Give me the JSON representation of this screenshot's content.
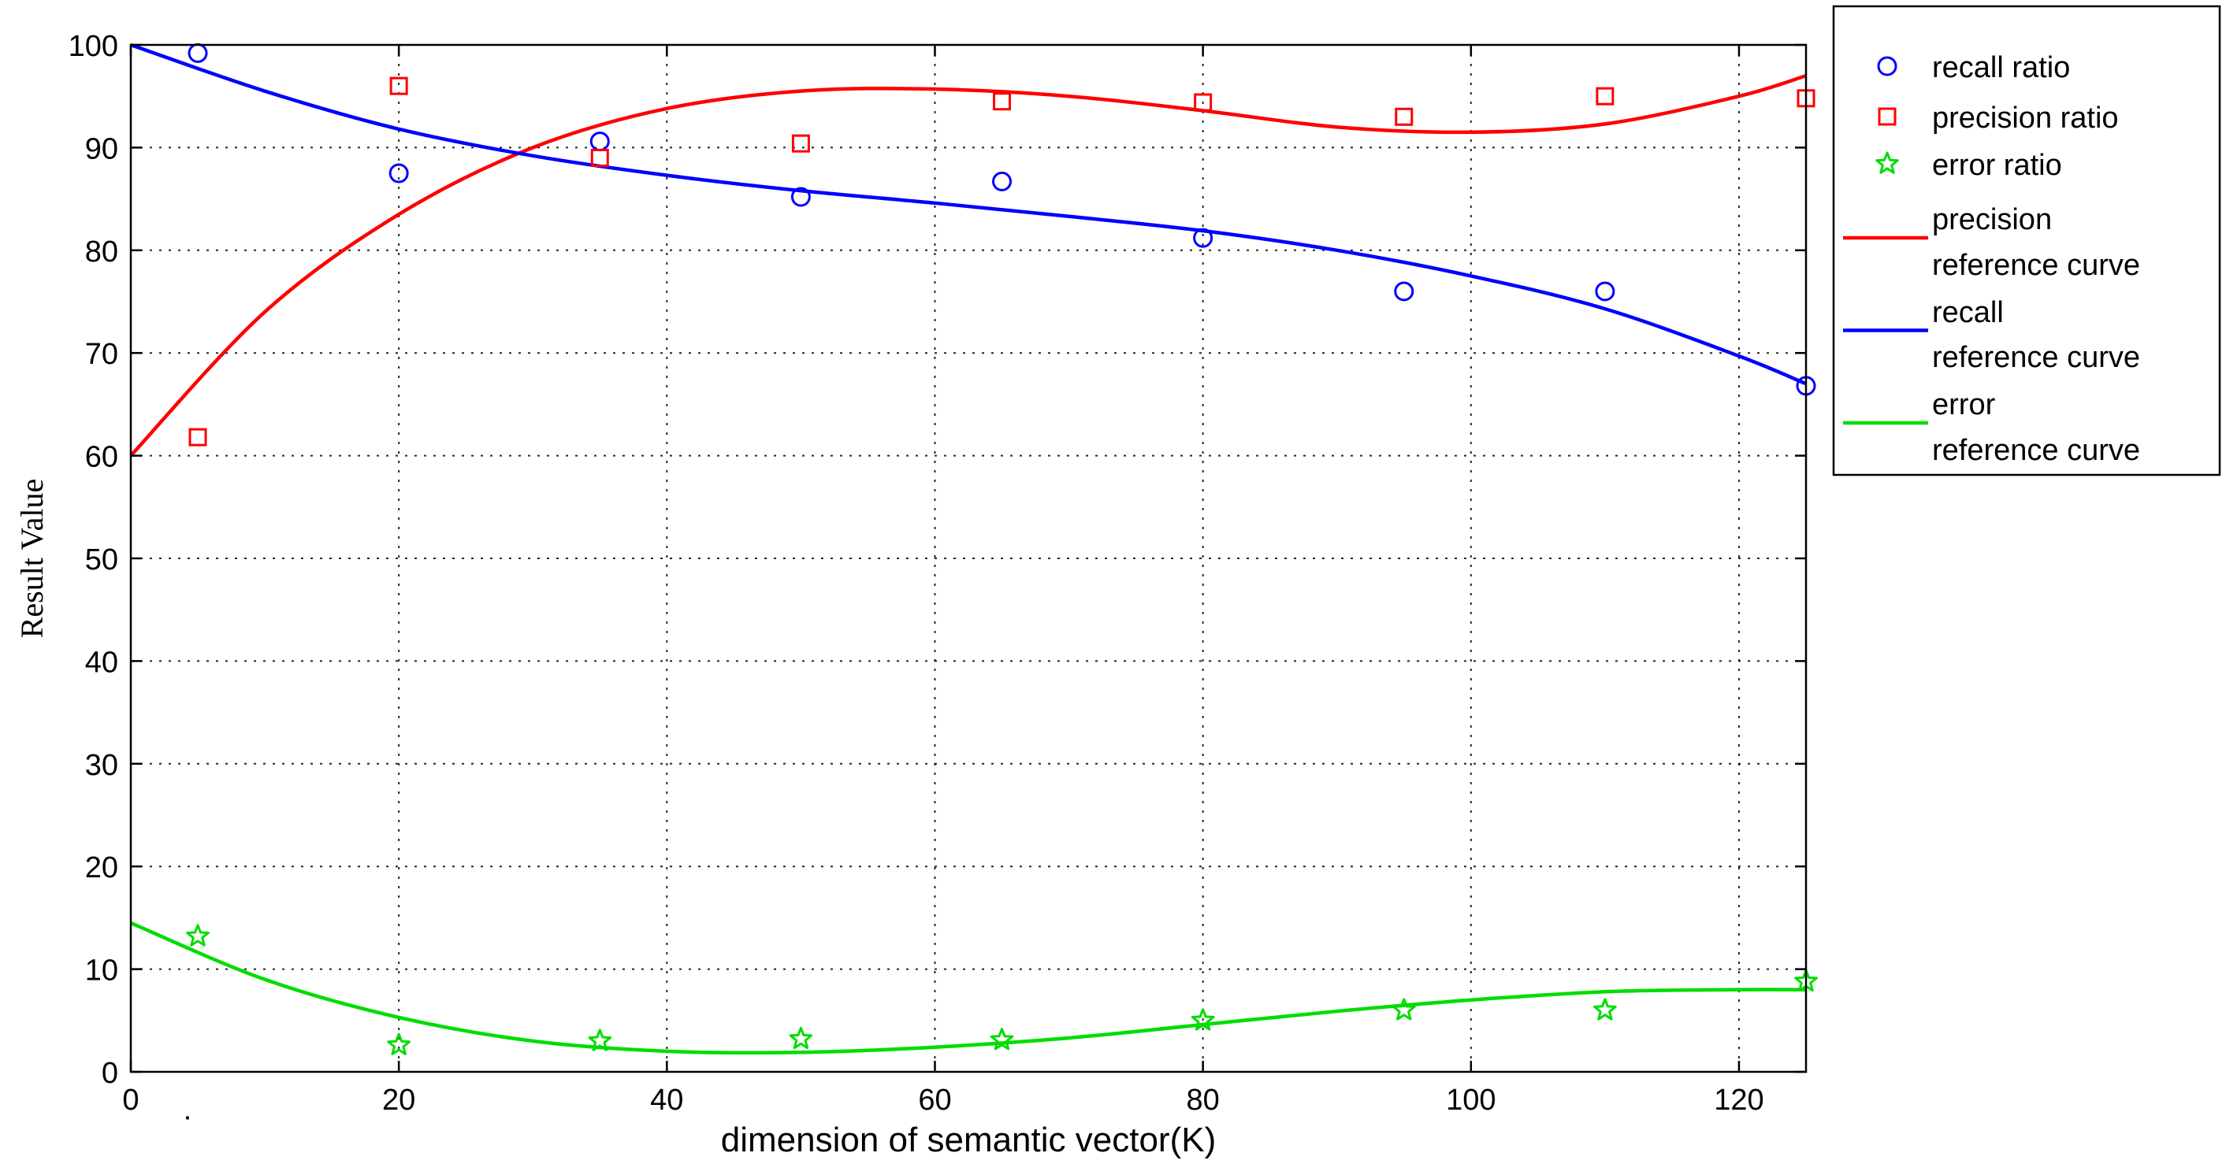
{
  "chart_data": {
    "type": "scatter",
    "title": "",
    "xlabel": "dimension of semantic vector(K)",
    "ylabel": "Result Value",
    "xlim": [
      0,
      125
    ],
    "ylim": [
      0,
      100
    ],
    "xticks": [
      0,
      20,
      40,
      60,
      80,
      100,
      120
    ],
    "yticks": [
      0,
      10,
      20,
      30,
      40,
      50,
      60,
      70,
      80,
      90,
      100
    ],
    "grid": true,
    "legend_position": "outside-top-right",
    "x": [
      5,
      20,
      35,
      50,
      65,
      80,
      95,
      110,
      125
    ],
    "series": [
      {
        "name": "recall ratio",
        "kind": "marker",
        "marker": "circle",
        "color": "#0000ff",
        "values": [
          99.2,
          87.5,
          90.6,
          85.2,
          86.7,
          81.2,
          76.0,
          76.0,
          66.8
        ]
      },
      {
        "name": "precision ratio",
        "kind": "marker",
        "marker": "square",
        "color": "#ff0000",
        "values": [
          61.8,
          96.0,
          89.0,
          90.4,
          94.5,
          94.4,
          93.0,
          95.0,
          94.8
        ]
      },
      {
        "name": "error ratio",
        "kind": "marker",
        "marker": "star",
        "color": "#00dd00",
        "values": [
          13.2,
          2.6,
          3.0,
          3.2,
          3.1,
          5.0,
          6.0,
          6.0,
          8.8
        ]
      }
    ],
    "reference_curves": [
      {
        "name_lines": [
          "precision",
          "reference curve"
        ],
        "color": "#ff0000",
        "x": [
          0,
          10,
          20,
          30,
          40,
          50,
          60,
          70,
          80,
          90,
          100,
          110,
          120,
          125
        ],
        "y": [
          60.0,
          74.0,
          83.5,
          90.0,
          93.8,
          95.5,
          95.7,
          95.0,
          93.6,
          92.0,
          91.5,
          92.3,
          95.0,
          97.0
        ]
      },
      {
        "name_lines": [
          "recall",
          "reference curve"
        ],
        "color": "#0000ff",
        "x": [
          0,
          10,
          20,
          30,
          40,
          50,
          60,
          70,
          80,
          90,
          100,
          110,
          120,
          125
        ],
        "y": [
          100.0,
          95.5,
          91.8,
          89.2,
          87.3,
          85.8,
          84.6,
          83.3,
          81.9,
          80.0,
          77.5,
          74.3,
          69.7,
          67.0
        ]
      },
      {
        "name_lines": [
          "error",
          "reference curve"
        ],
        "color": "#00dd00",
        "x": [
          0,
          10,
          20,
          30,
          40,
          50,
          60,
          70,
          80,
          90,
          100,
          110,
          120,
          125
        ],
        "y": [
          14.5,
          9.0,
          5.3,
          3.0,
          2.0,
          1.9,
          2.4,
          3.3,
          4.6,
          5.9,
          7.0,
          7.8,
          8.0,
          8.0
        ]
      }
    ],
    "stray_mark": "·"
  }
}
